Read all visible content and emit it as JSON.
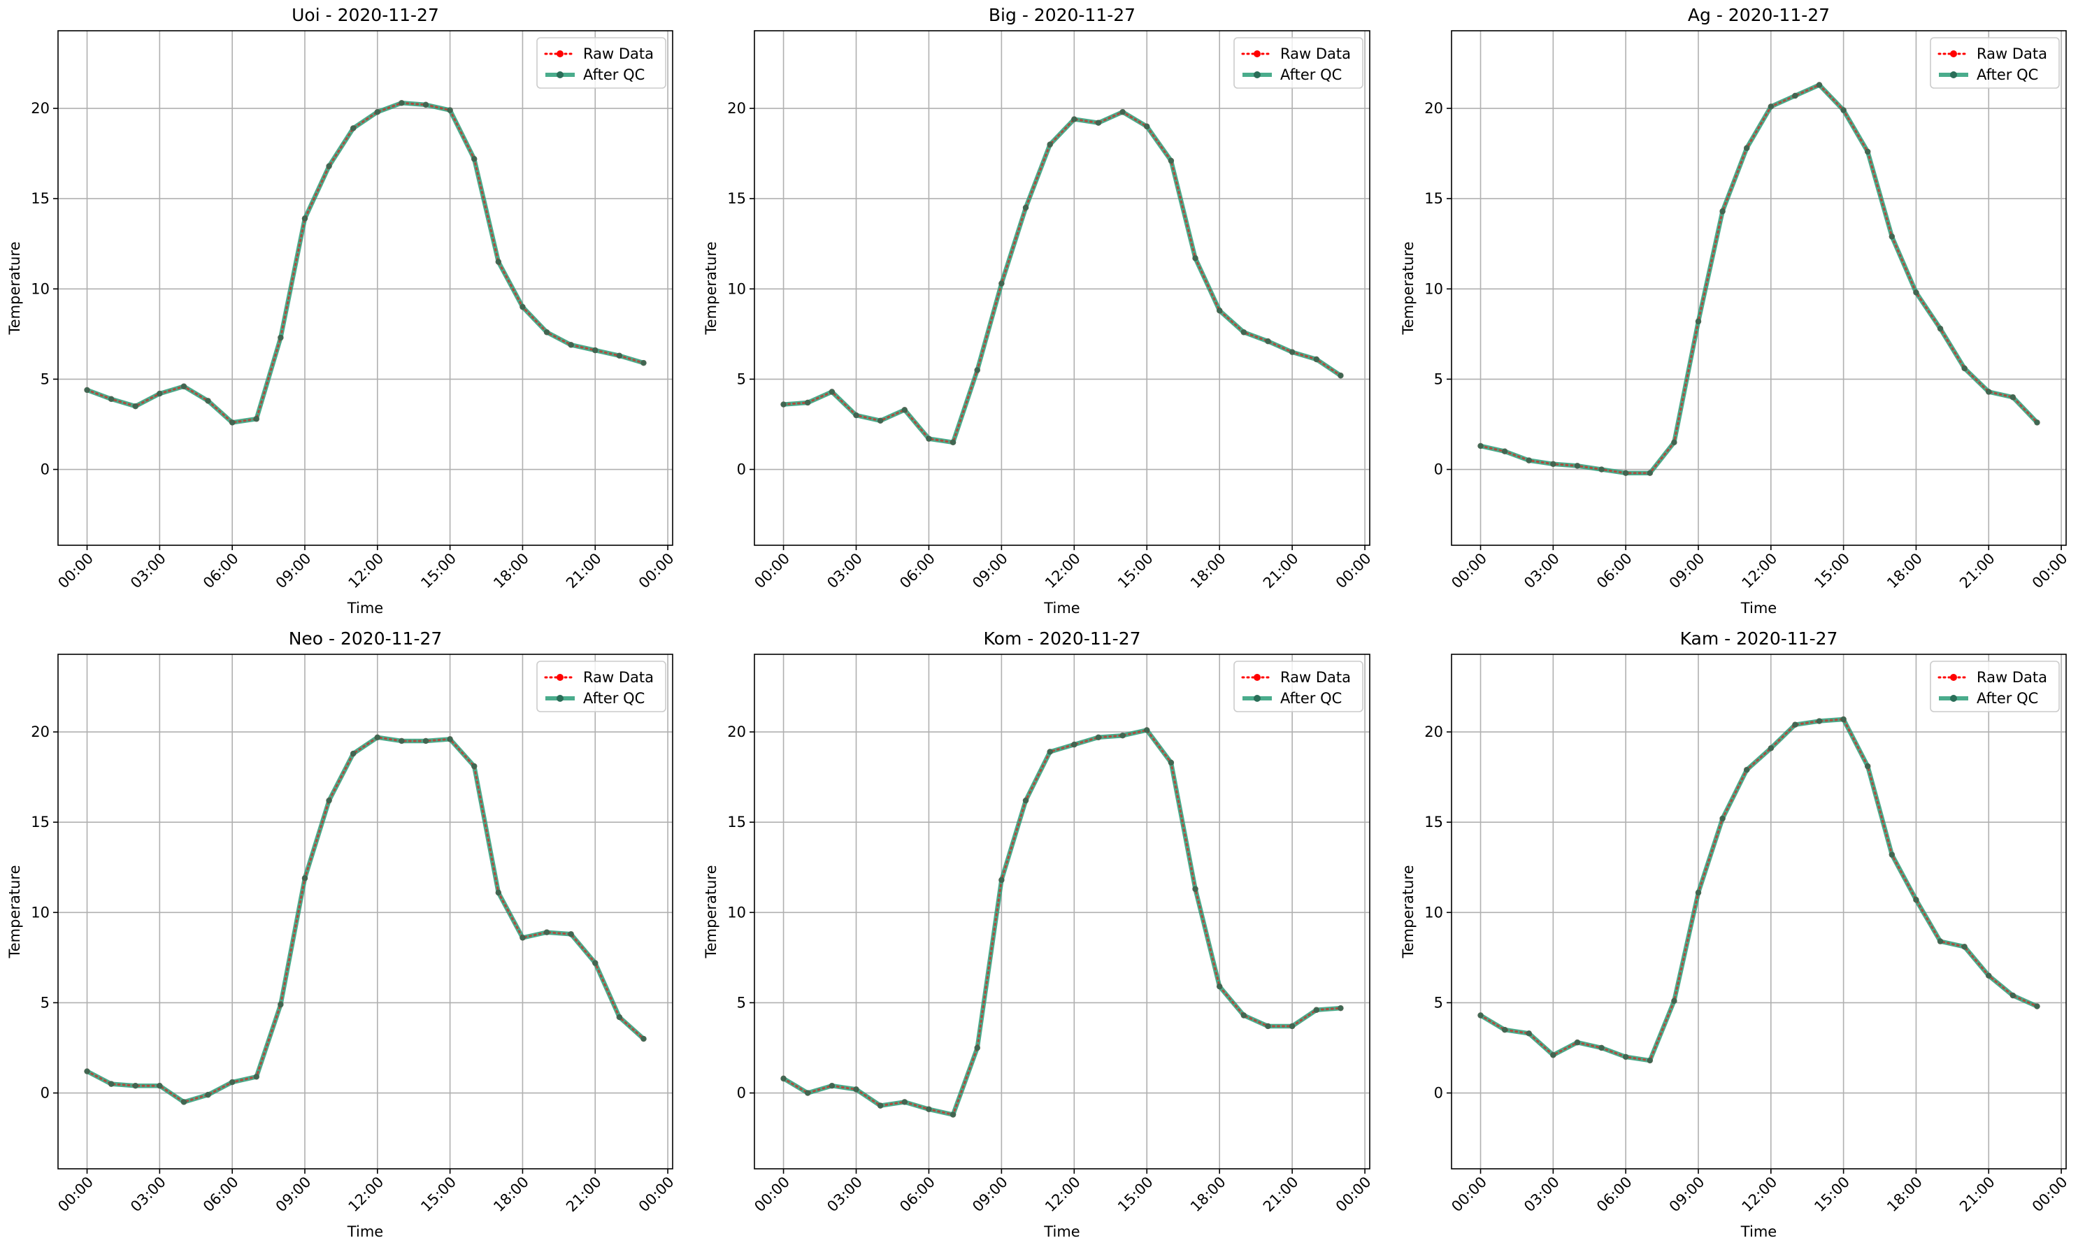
{
  "chart_data": [
    {
      "type": "line",
      "title": "Uoi - 2020-11-27",
      "xlabel": "Time",
      "ylabel": "Temperature",
      "x_tick_labels": [
        "00:00",
        "03:00",
        "06:00",
        "09:00",
        "12:00",
        "15:00",
        "18:00",
        "21:00",
        "00:00"
      ],
      "y_ticks": [
        0,
        5,
        10,
        15,
        20
      ],
      "ylim": [
        -4.2,
        24.3
      ],
      "xlim_hours": [
        -1.2,
        24.2
      ],
      "grid": true,
      "legend": "top-right",
      "series": [
        {
          "name": "Raw Data",
          "color": "#ff0000",
          "style": "dotted",
          "marker": "circle",
          "values": [
            4.4,
            3.9,
            3.5,
            4.2,
            4.6,
            3.8,
            2.6,
            2.8,
            7.3,
            13.9,
            16.8,
            18.9,
            19.8,
            20.3,
            20.2,
            19.9,
            17.2,
            11.5,
            9.0,
            7.6,
            6.9,
            6.6,
            6.3,
            5.9
          ]
        },
        {
          "name": "After QC",
          "color": "#2a9d78",
          "style": "solid",
          "marker": "circle",
          "values": [
            4.4,
            3.9,
            3.5,
            4.2,
            4.6,
            3.8,
            2.6,
            2.8,
            7.3,
            13.9,
            16.8,
            18.9,
            19.8,
            20.3,
            20.2,
            19.9,
            17.2,
            11.5,
            9.0,
            7.6,
            6.9,
            6.6,
            6.3,
            5.9
          ]
        }
      ]
    },
    {
      "type": "line",
      "title": "Big - 2020-11-27",
      "xlabel": "Time",
      "ylabel": "Temperature",
      "x_tick_labels": [
        "00:00",
        "03:00",
        "06:00",
        "09:00",
        "12:00",
        "15:00",
        "18:00",
        "21:00",
        "00:00"
      ],
      "y_ticks": [
        0,
        5,
        10,
        15,
        20
      ],
      "ylim": [
        -4.2,
        24.3
      ],
      "xlim_hours": [
        -1.2,
        24.2
      ],
      "grid": true,
      "legend": "top-right",
      "series": [
        {
          "name": "Raw Data",
          "color": "#ff0000",
          "style": "dotted",
          "marker": "circle",
          "values": [
            3.6,
            3.7,
            4.3,
            3.0,
            2.7,
            3.3,
            1.7,
            1.5,
            5.5,
            10.3,
            14.5,
            18.0,
            19.4,
            19.2,
            19.8,
            19.0,
            17.1,
            11.7,
            8.8,
            7.6,
            7.1,
            6.5,
            6.1,
            5.2
          ]
        },
        {
          "name": "After QC",
          "color": "#2a9d78",
          "style": "solid",
          "marker": "circle",
          "values": [
            3.6,
            3.7,
            4.3,
            3.0,
            2.7,
            3.3,
            1.7,
            1.5,
            5.5,
            10.3,
            14.5,
            18.0,
            19.4,
            19.2,
            19.8,
            19.0,
            17.1,
            11.7,
            8.8,
            7.6,
            7.1,
            6.5,
            6.1,
            5.2
          ]
        }
      ]
    },
    {
      "type": "line",
      "title": "Ag - 2020-11-27",
      "xlabel": "Time",
      "ylabel": "Temperature",
      "x_tick_labels": [
        "00:00",
        "03:00",
        "06:00",
        "09:00",
        "12:00",
        "15:00",
        "18:00",
        "21:00",
        "00:00"
      ],
      "y_ticks": [
        0,
        5,
        10,
        15,
        20
      ],
      "ylim": [
        -4.2,
        24.3
      ],
      "xlim_hours": [
        -1.2,
        24.2
      ],
      "grid": true,
      "legend": "top-right",
      "series": [
        {
          "name": "Raw Data",
          "color": "#ff0000",
          "style": "dotted",
          "marker": "circle",
          "values": [
            1.3,
            1.0,
            0.5,
            0.3,
            0.2,
            0.0,
            -0.2,
            -0.2,
            1.5,
            8.2,
            14.3,
            17.8,
            20.1,
            20.7,
            21.3,
            19.9,
            17.6,
            12.9,
            9.8,
            7.8,
            5.6,
            4.3,
            4.0,
            2.6
          ]
        },
        {
          "name": "After QC",
          "color": "#2a9d78",
          "style": "solid",
          "marker": "circle",
          "values": [
            1.3,
            1.0,
            0.5,
            0.3,
            0.2,
            0.0,
            -0.2,
            -0.2,
            1.5,
            8.2,
            14.3,
            17.8,
            20.1,
            20.7,
            21.3,
            19.9,
            17.6,
            12.9,
            9.8,
            7.8,
            5.6,
            4.3,
            4.0,
            2.6
          ]
        }
      ]
    },
    {
      "type": "line",
      "title": "Neo - 2020-11-27",
      "xlabel": "Time",
      "ylabel": "Temperature",
      "x_tick_labels": [
        "00:00",
        "03:00",
        "06:00",
        "09:00",
        "12:00",
        "15:00",
        "18:00",
        "21:00",
        "00:00"
      ],
      "y_ticks": [
        0,
        5,
        10,
        15,
        20
      ],
      "ylim": [
        -4.2,
        24.3
      ],
      "xlim_hours": [
        -1.2,
        24.2
      ],
      "grid": true,
      "legend": "top-right",
      "series": [
        {
          "name": "Raw Data",
          "color": "#ff0000",
          "style": "dotted",
          "marker": "circle",
          "values": [
            1.2,
            0.5,
            0.4,
            0.4,
            -0.5,
            -0.1,
            0.6,
            0.9,
            4.9,
            11.9,
            16.2,
            18.8,
            19.7,
            19.5,
            19.5,
            19.6,
            18.1,
            11.1,
            8.6,
            8.9,
            8.8,
            7.2,
            4.2,
            3.0
          ]
        },
        {
          "name": "After QC",
          "color": "#2a9d78",
          "style": "solid",
          "marker": "circle",
          "values": [
            1.2,
            0.5,
            0.4,
            0.4,
            -0.5,
            -0.1,
            0.6,
            0.9,
            4.9,
            11.9,
            16.2,
            18.8,
            19.7,
            19.5,
            19.5,
            19.6,
            18.1,
            11.1,
            8.6,
            8.9,
            8.8,
            7.2,
            4.2,
            3.0
          ]
        }
      ]
    },
    {
      "type": "line",
      "title": "Kom - 2020-11-27",
      "xlabel": "Time",
      "ylabel": "Temperature",
      "x_tick_labels": [
        "00:00",
        "03:00",
        "06:00",
        "09:00",
        "12:00",
        "15:00",
        "18:00",
        "21:00",
        "00:00"
      ],
      "y_ticks": [
        0,
        5,
        10,
        15,
        20
      ],
      "ylim": [
        -4.2,
        24.3
      ],
      "xlim_hours": [
        -1.2,
        24.2
      ],
      "grid": true,
      "legend": "top-right",
      "series": [
        {
          "name": "Raw Data",
          "color": "#ff0000",
          "style": "dotted",
          "marker": "circle",
          "values": [
            0.8,
            0.0,
            0.4,
            0.2,
            -0.7,
            -0.5,
            -0.9,
            -1.2,
            2.5,
            11.8,
            16.2,
            18.9,
            19.3,
            19.7,
            19.8,
            20.1,
            18.3,
            11.3,
            5.9,
            4.3,
            3.7,
            3.7,
            4.6,
            4.7
          ]
        },
        {
          "name": "After QC",
          "color": "#2a9d78",
          "style": "solid",
          "marker": "circle",
          "values": [
            0.8,
            0.0,
            0.4,
            0.2,
            -0.7,
            -0.5,
            -0.9,
            -1.2,
            2.5,
            11.8,
            16.2,
            18.9,
            19.3,
            19.7,
            19.8,
            20.1,
            18.3,
            11.3,
            5.9,
            4.3,
            3.7,
            3.7,
            4.6,
            4.7
          ]
        }
      ]
    },
    {
      "type": "line",
      "title": "Kam - 2020-11-27",
      "xlabel": "Time",
      "ylabel": "Temperature",
      "x_tick_labels": [
        "00:00",
        "03:00",
        "06:00",
        "09:00",
        "12:00",
        "15:00",
        "18:00",
        "21:00",
        "00:00"
      ],
      "y_ticks": [
        0,
        5,
        10,
        15,
        20
      ],
      "ylim": [
        -4.2,
        24.3
      ],
      "xlim_hours": [
        -1.2,
        24.2
      ],
      "grid": true,
      "legend": "top-right",
      "series": [
        {
          "name": "Raw Data",
          "color": "#ff0000",
          "style": "dotted",
          "marker": "circle",
          "values": [
            4.3,
            3.5,
            3.3,
            2.1,
            2.8,
            2.5,
            2.0,
            1.8,
            5.1,
            11.1,
            15.2,
            17.9,
            19.1,
            20.4,
            20.6,
            20.7,
            18.1,
            13.2,
            10.7,
            8.4,
            8.1,
            6.5,
            5.4,
            4.8
          ]
        },
        {
          "name": "After QC",
          "color": "#2a9d78",
          "style": "solid",
          "marker": "circle",
          "values": [
            4.3,
            3.5,
            3.3,
            2.1,
            2.8,
            2.5,
            2.0,
            1.8,
            5.1,
            11.1,
            15.2,
            17.9,
            19.1,
            20.4,
            20.6,
            20.7,
            18.1,
            13.2,
            10.7,
            8.4,
            8.1,
            6.5,
            5.4,
            4.8
          ]
        }
      ]
    }
  ]
}
